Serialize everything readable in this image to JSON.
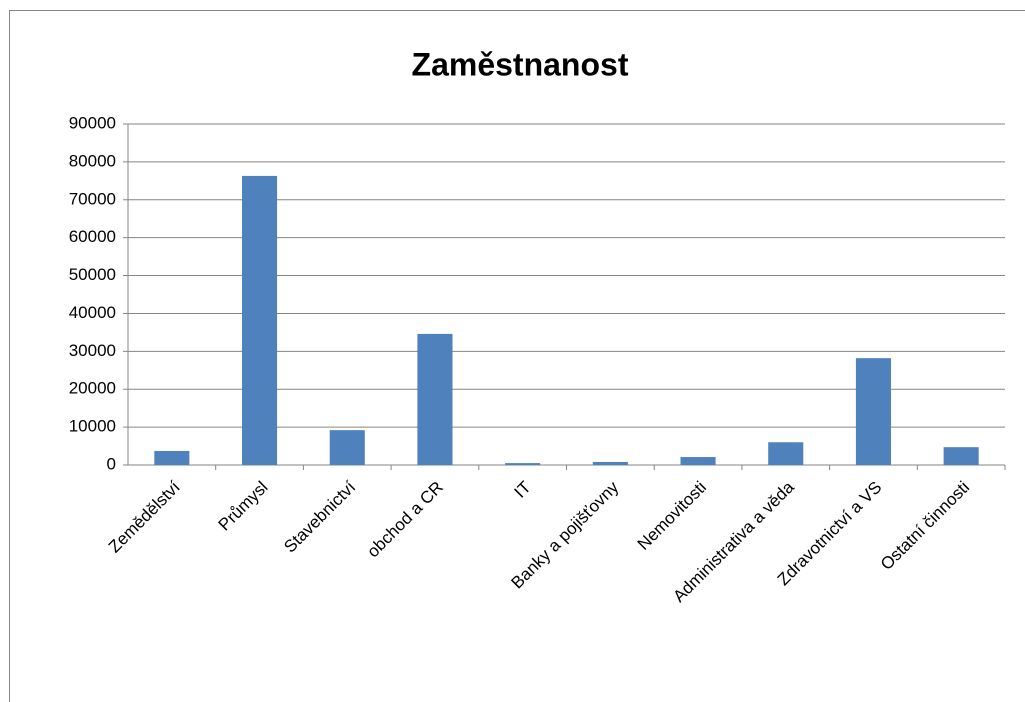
{
  "chart_data": {
    "type": "bar",
    "title": "Zaměstnanost",
    "categories": [
      "Zemědělství",
      "Průmysl",
      "Stavebnictví",
      "obchod a CR",
      "IT",
      "Banky a pojišťovny",
      "Nemovitosti",
      "Administrativa a věda",
      "Zdravotnictví a VS",
      "Ostatní činnosti"
    ],
    "values": [
      3700,
      76300,
      9200,
      34600,
      500,
      800,
      2100,
      6000,
      28200,
      4700
    ],
    "color": "#4f81bd",
    "ylim": [
      0,
      90000
    ],
    "yticks": [
      0,
      10000,
      20000,
      30000,
      40000,
      50000,
      60000,
      70000,
      80000,
      90000
    ],
    "grid": true
  }
}
